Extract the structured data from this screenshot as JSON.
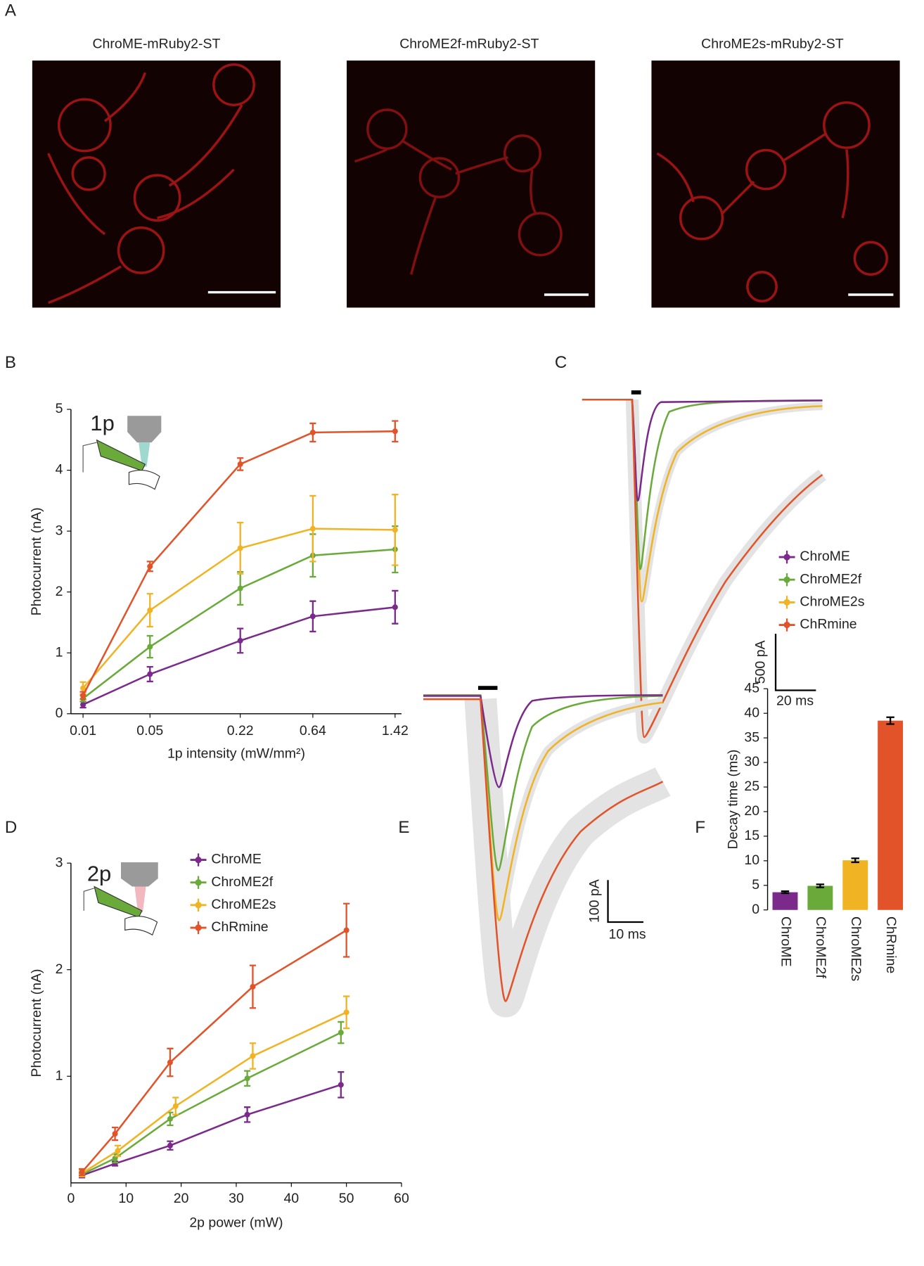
{
  "panel_a": {
    "label": "A",
    "images": [
      {
        "title": "ChroME-mRuby2-ST"
      },
      {
        "title": "ChroME2f-mRuby2-ST"
      },
      {
        "title": "ChroME2s-mRuby2-ST"
      }
    ]
  },
  "chart_data": [
    {
      "panel": "B",
      "type": "line",
      "annotation": "1p",
      "xlabel": "1p intensity (mW/mm²)",
      "ylabel": "Photocurrent (nA)",
      "categories": [
        "0.01",
        "0.05",
        "0.22",
        "0.64",
        "1.42"
      ],
      "ylim": [
        0,
        5
      ],
      "yticks": [
        0,
        1,
        2,
        3,
        4,
        5
      ],
      "series": [
        {
          "color": "#7b2a8c",
          "values": [
            0.15,
            0.65,
            1.2,
            1.6,
            1.75
          ],
          "errors": [
            0.05,
            0.12,
            0.2,
            0.25,
            0.27
          ]
        },
        {
          "color": "#6aaa3a",
          "values": [
            0.25,
            1.1,
            2.06,
            2.6,
            2.7
          ],
          "errors": [
            0.05,
            0.18,
            0.27,
            0.35,
            0.38
          ]
        },
        {
          "color": "#f0b323",
          "values": [
            0.42,
            1.7,
            2.72,
            3.04,
            3.02
          ],
          "errors": [
            0.1,
            0.27,
            0.42,
            0.54,
            0.58
          ]
        },
        {
          "color": "#e2532a",
          "values": [
            0.3,
            2.42,
            4.1,
            4.62,
            4.64
          ],
          "errors": [
            0.06,
            0.08,
            0.1,
            0.15,
            0.17
          ]
        }
      ]
    },
    {
      "panel": "C",
      "type": "traces",
      "scalebar_y": "500 pA",
      "scalebar_x": "20 ms",
      "series": [
        {
          "name": "ChroME",
          "color": "#7b2a8c"
        },
        {
          "name": "ChroME2f",
          "color": "#6aaa3a"
        },
        {
          "name": "ChroME2s",
          "color": "#f0b323"
        },
        {
          "name": "ChRmine",
          "color": "#e2532a"
        }
      ]
    },
    {
      "panel": "D",
      "type": "line",
      "annotation": "2p",
      "xlabel": "2p power (mW)",
      "ylabel": "Photocurrent (nA)",
      "xlim": [
        0,
        60
      ],
      "xticks": [
        0,
        10,
        20,
        30,
        40,
        50,
        60
      ],
      "ylim": [
        0,
        3
      ],
      "yticks": [
        1,
        2,
        3
      ],
      "series": [
        {
          "name": "ChroME",
          "color": "#7b2a8c",
          "x": [
            2,
            8,
            18,
            32,
            49
          ],
          "values": [
            0.07,
            0.18,
            0.35,
            0.64,
            0.92
          ],
          "errors": [
            0.02,
            0.02,
            0.04,
            0.07,
            0.12
          ]
        },
        {
          "name": "ChroME2f",
          "color": "#6aaa3a",
          "x": [
            2,
            8,
            18,
            32,
            49
          ],
          "values": [
            0.08,
            0.23,
            0.6,
            0.98,
            1.41
          ],
          "errors": [
            0.02,
            0.04,
            0.06,
            0.07,
            0.1
          ]
        },
        {
          "name": "ChroME2s",
          "color": "#f0b323",
          "x": [
            2,
            8.5,
            19,
            33,
            50
          ],
          "values": [
            0.09,
            0.3,
            0.72,
            1.19,
            1.6
          ],
          "errors": [
            0.03,
            0.05,
            0.08,
            0.12,
            0.15
          ]
        },
        {
          "name": "ChRmine",
          "color": "#e2532a",
          "x": [
            2,
            8,
            18,
            33,
            50
          ],
          "values": [
            0.1,
            0.46,
            1.13,
            1.84,
            2.37
          ],
          "errors": [
            0.03,
            0.06,
            0.13,
            0.2,
            0.25
          ]
        }
      ]
    },
    {
      "panel": "E",
      "type": "traces",
      "scalebar_y": "100 pA",
      "scalebar_x": "10 ms",
      "series": [
        {
          "color": "#7b2a8c"
        },
        {
          "color": "#6aaa3a"
        },
        {
          "color": "#f0b323"
        },
        {
          "color": "#e2532a"
        }
      ]
    },
    {
      "panel": "F",
      "type": "bar",
      "ylabel": "Decay time (ms)",
      "categories": [
        "ChroME",
        "ChroME2f",
        "ChroME2s",
        "ChRmine"
      ],
      "values": [
        3.6,
        4.9,
        10.1,
        38.5
      ],
      "errors": [
        0.2,
        0.3,
        0.4,
        0.7
      ],
      "colors": [
        "#7b2a8c",
        "#6aaa3a",
        "#f0b323",
        "#e2532a"
      ],
      "ylim": [
        0,
        45
      ],
      "yticks": [
        0,
        5,
        10,
        15,
        20,
        25,
        30,
        35,
        40,
        45
      ]
    }
  ]
}
